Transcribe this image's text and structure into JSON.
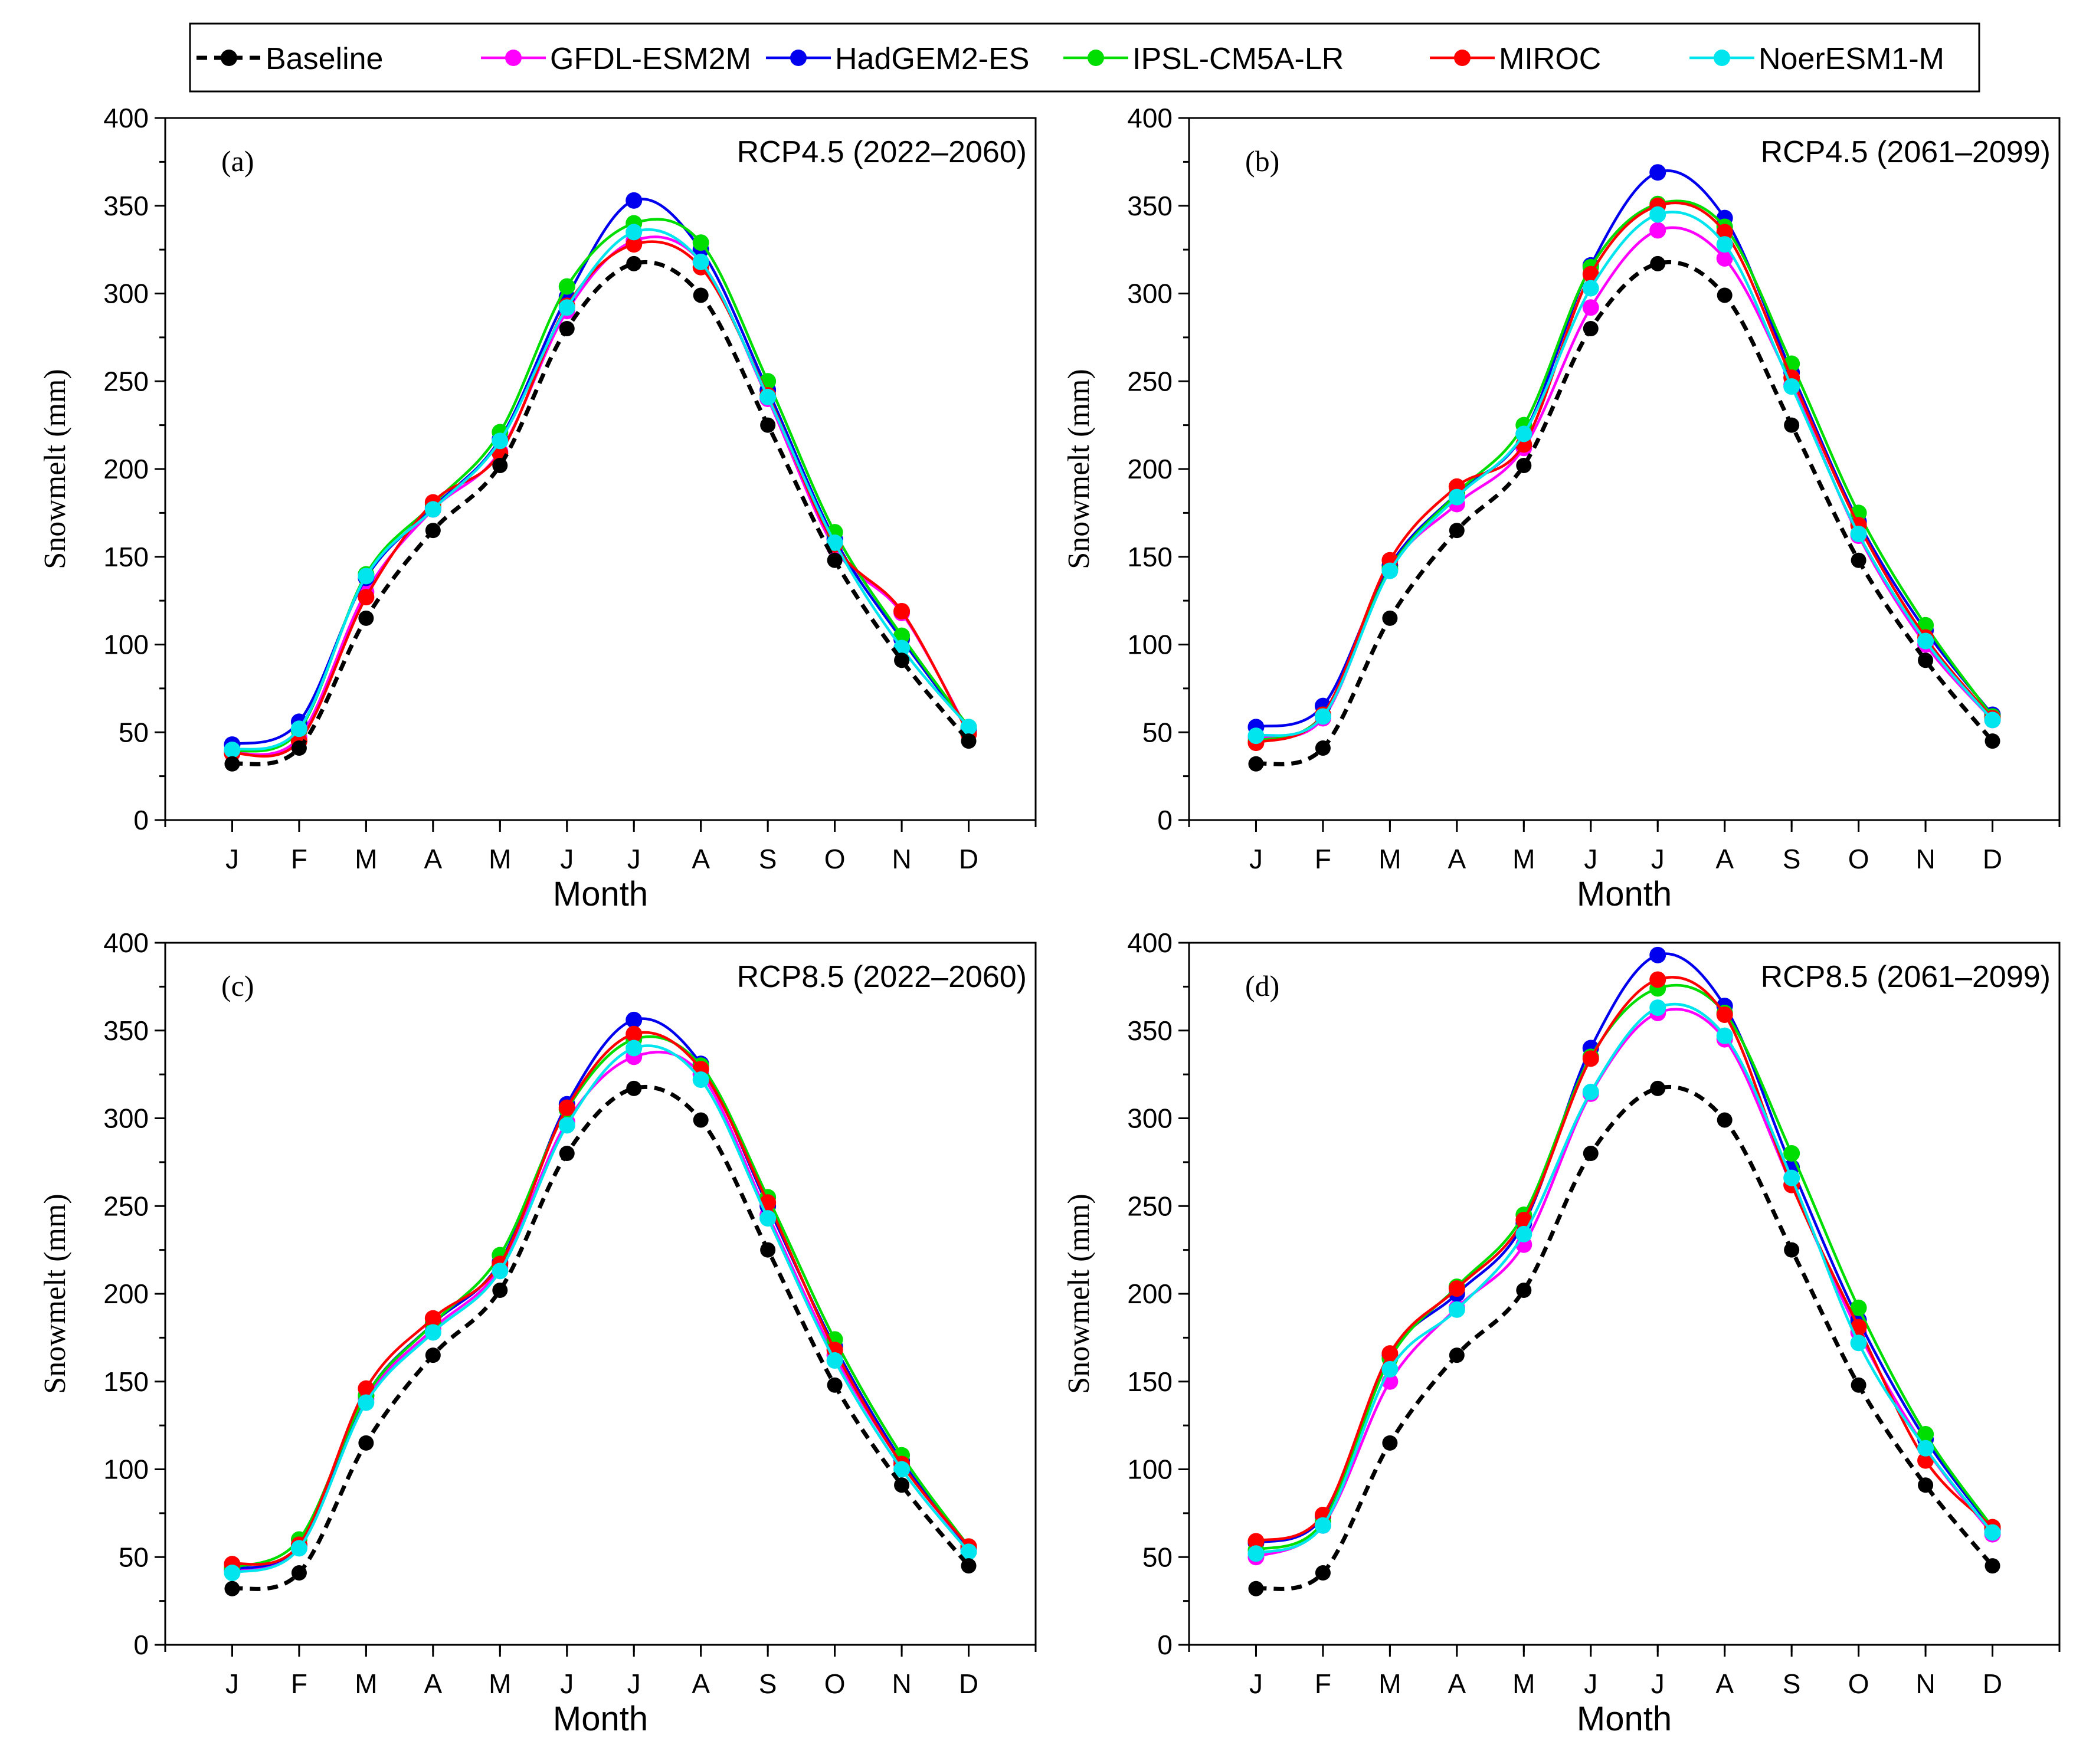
{
  "legend": {
    "entries": [
      {
        "name": "Baseline",
        "color": "#000000",
        "dashed": true
      },
      {
        "name": "GFDL-ESM2M",
        "color": "#ff00ff",
        "dashed": false
      },
      {
        "name": "HadGEM2-ES",
        "color": "#0000ee",
        "dashed": false
      },
      {
        "name": "IPSL-CM5A-LR",
        "color": "#00dd00",
        "dashed": false
      },
      {
        "name": "MIROC",
        "color": "#ff0000",
        "dashed": false
      },
      {
        "name": "NoerESM1-M",
        "color": "#00e5ee",
        "dashed": false
      }
    ]
  },
  "chart_data": [
    {
      "type": "line",
      "label": "(a)",
      "title": "RCP4.5 (2022–2060)",
      "xlabel": "Month",
      "ylabel": "Snowmelt (mm)",
      "ylim": [
        0,
        400
      ],
      "yticks": [
        "0",
        "50",
        "100",
        "150",
        "200",
        "250",
        "300",
        "350",
        "400"
      ],
      "categories": [
        "J",
        "F",
        "M",
        "A",
        "M",
        "J",
        "J",
        "A",
        "S",
        "O",
        "N",
        "D"
      ],
      "series": [
        {
          "name": "Baseline",
          "values": [
            32,
            41,
            115,
            165,
            202,
            280,
            317,
            299,
            225,
            148,
            91,
            45
          ]
        },
        {
          "name": "GFDL-ESM2M",
          "values": [
            38,
            47,
            130,
            177,
            210,
            290,
            330,
            318,
            240,
            155,
            118,
            50
          ]
        },
        {
          "name": "HadGEM2-ES",
          "values": [
            43,
            56,
            138,
            178,
            217,
            298,
            353,
            325,
            245,
            160,
            103,
            52
          ]
        },
        {
          "name": "IPSL-CM5A-LR",
          "values": [
            39,
            51,
            140,
            180,
            221,
            304,
            340,
            329,
            250,
            164,
            105,
            53
          ]
        },
        {
          "name": "MIROC",
          "values": [
            38,
            45,
            127,
            181,
            209,
            293,
            328,
            315,
            242,
            157,
            119,
            49
          ]
        },
        {
          "name": "NoerESM1-M",
          "values": [
            40,
            52,
            139,
            177,
            216,
            292,
            335,
            318,
            241,
            158,
            98,
            53
          ]
        }
      ]
    },
    {
      "type": "line",
      "label": "(b)",
      "title": "RCP4.5 (2061–2099)",
      "xlabel": "Month",
      "ylabel": "Snowmelt (mm)",
      "ylim": [
        0,
        400
      ],
      "yticks": [
        "0",
        "50",
        "100",
        "150",
        "200",
        "250",
        "300",
        "350",
        "400"
      ],
      "categories": [
        "J",
        "F",
        "M",
        "A",
        "M",
        "J",
        "J",
        "A",
        "S",
        "O",
        "N",
        "D"
      ],
      "series": [
        {
          "name": "Baseline",
          "values": [
            32,
            41,
            115,
            165,
            202,
            280,
            317,
            299,
            225,
            148,
            91,
            45
          ]
        },
        {
          "name": "GFDL-ESM2M",
          "values": [
            47,
            58,
            143,
            180,
            212,
            292,
            336,
            320,
            248,
            162,
            100,
            57
          ]
        },
        {
          "name": "HadGEM2-ES",
          "values": [
            53,
            65,
            145,
            186,
            220,
            316,
            369,
            343,
            255,
            170,
            108,
            60
          ]
        },
        {
          "name": "IPSL-CM5A-LR",
          "values": [
            45,
            60,
            143,
            186,
            225,
            315,
            351,
            338,
            260,
            175,
            111,
            59
          ]
        },
        {
          "name": "MIROC",
          "values": [
            44,
            60,
            148,
            190,
            214,
            311,
            350,
            335,
            252,
            168,
            104,
            58
          ]
        },
        {
          "name": "NoerESM1-M",
          "values": [
            48,
            59,
            142,
            184,
            220,
            303,
            345,
            328,
            247,
            163,
            102,
            57
          ]
        }
      ]
    },
    {
      "type": "line",
      "label": "(c)",
      "title": "RCP8.5 (2022–2060)",
      "xlabel": "Month",
      "ylabel": "Snowmelt (mm)",
      "ylim": [
        0,
        400
      ],
      "yticks": [
        "0",
        "50",
        "100",
        "150",
        "200",
        "250",
        "300",
        "350",
        "400"
      ],
      "categories": [
        "J",
        "F",
        "M",
        "A",
        "M",
        "J",
        "J",
        "A",
        "S",
        "O",
        "N",
        "D"
      ],
      "series": [
        {
          "name": "Baseline",
          "values": [
            32,
            41,
            115,
            165,
            202,
            280,
            317,
            299,
            225,
            148,
            91,
            45
          ]
        },
        {
          "name": "GFDL-ESM2M",
          "values": [
            42,
            56,
            140,
            180,
            215,
            298,
            335,
            325,
            245,
            165,
            103,
            55
          ]
        },
        {
          "name": "HadGEM2-ES",
          "values": [
            43,
            57,
            142,
            183,
            218,
            308,
            356,
            331,
            250,
            170,
            105,
            55
          ]
        },
        {
          "name": "IPSL-CM5A-LR",
          "values": [
            44,
            60,
            142,
            183,
            222,
            305,
            345,
            330,
            255,
            174,
            108,
            56
          ]
        },
        {
          "name": "MIROC",
          "values": [
            46,
            57,
            146,
            186,
            217,
            306,
            348,
            328,
            252,
            168,
            103,
            56
          ]
        },
        {
          "name": "NoerESM1-M",
          "values": [
            41,
            55,
            138,
            178,
            213,
            296,
            340,
            322,
            243,
            162,
            100,
            53
          ]
        }
      ]
    },
    {
      "type": "line",
      "label": "(d)",
      "title": "RCP8.5 (2061–2099)",
      "xlabel": "Month",
      "ylabel": "Snowmelt (mm)",
      "ylim": [
        0,
        400
      ],
      "yticks": [
        "0",
        "50",
        "100",
        "150",
        "200",
        "250",
        "300",
        "350",
        "400"
      ],
      "categories": [
        "J",
        "F",
        "M",
        "A",
        "M",
        "J",
        "J",
        "A",
        "S",
        "O",
        "N",
        "D"
      ],
      "series": [
        {
          "name": "Baseline",
          "values": [
            32,
            41,
            115,
            165,
            202,
            280,
            317,
            299,
            225,
            148,
            91,
            45
          ]
        },
        {
          "name": "GFDL-ESM2M",
          "values": [
            50,
            68,
            150,
            192,
            228,
            314,
            360,
            345,
            262,
            178,
            112,
            63
          ]
        },
        {
          "name": "HadGEM2-ES",
          "values": [
            58,
            73,
            165,
            200,
            240,
            340,
            393,
            364,
            272,
            185,
            117,
            66
          ]
        },
        {
          "name": "IPSL-CM5A-LR",
          "values": [
            54,
            70,
            163,
            204,
            245,
            335,
            374,
            360,
            280,
            192,
            120,
            67
          ]
        },
        {
          "name": "MIROC",
          "values": [
            59,
            74,
            166,
            203,
            242,
            334,
            379,
            359,
            262,
            181,
            105,
            67
          ]
        },
        {
          "name": "NoerESM1-M",
          "values": [
            52,
            68,
            157,
            191,
            234,
            315,
            363,
            347,
            266,
            172,
            112,
            64
          ]
        }
      ]
    }
  ]
}
